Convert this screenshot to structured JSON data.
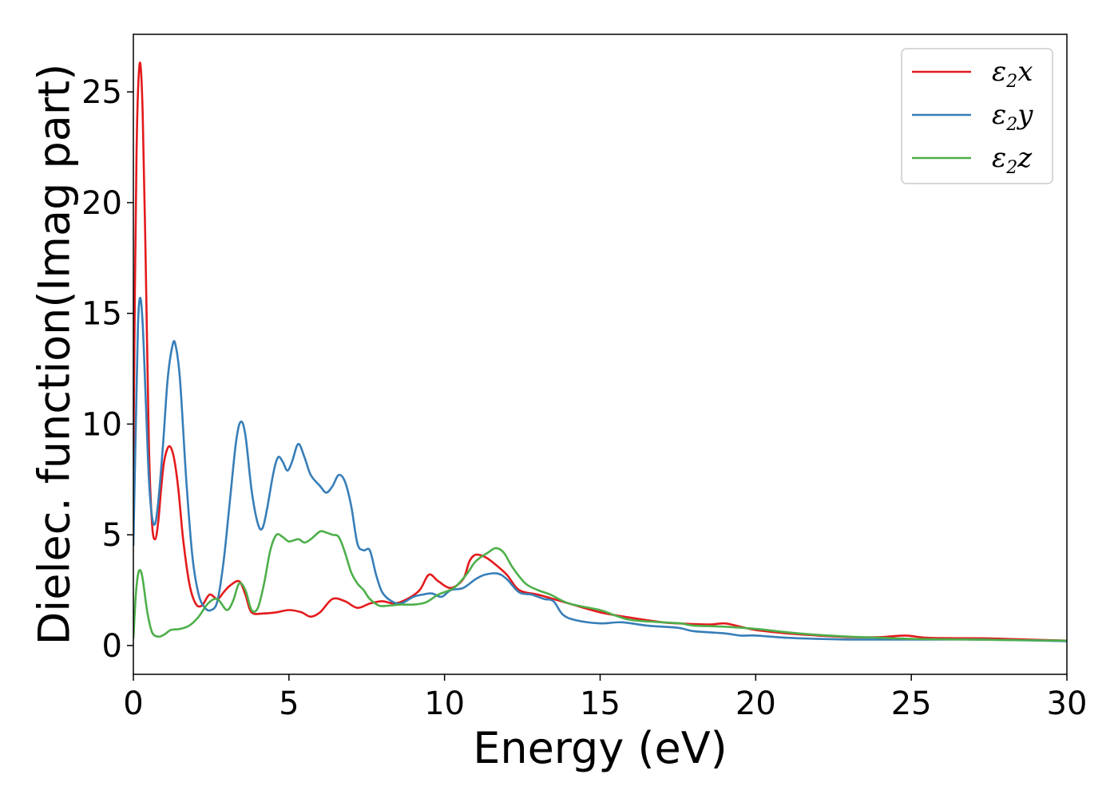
{
  "chart_data": {
    "type": "line",
    "title": "",
    "xlabel": "Energy (eV)",
    "ylabel": "Dielec. function(Imag part)",
    "xlim": [
      0,
      30
    ],
    "ylim": [
      -1.3,
      27.6
    ],
    "xticks": [
      0,
      5,
      10,
      15,
      20,
      25,
      30
    ],
    "yticks": [
      0,
      5,
      10,
      15,
      20,
      25
    ],
    "grid": false,
    "legend_position": "top-right",
    "series": [
      {
        "name": "ε₂x",
        "legend_base": "ε",
        "legend_sub": "2",
        "legend_suffix": "x",
        "color": "#e41a1c",
        "points": [
          [
            0,
            8
          ],
          [
            0.05,
            16
          ],
          [
            0.1,
            22
          ],
          [
            0.15,
            25
          ],
          [
            0.22,
            26.3
          ],
          [
            0.3,
            24
          ],
          [
            0.4,
            17
          ],
          [
            0.5,
            9
          ],
          [
            0.6,
            5.5
          ],
          [
            0.7,
            4.8
          ],
          [
            0.8,
            5.6
          ],
          [
            0.9,
            7.2
          ],
          [
            1.0,
            8.4
          ],
          [
            1.15,
            9.0
          ],
          [
            1.3,
            8.5
          ],
          [
            1.45,
            7.0
          ],
          [
            1.6,
            4.8
          ],
          [
            1.8,
            2.8
          ],
          [
            2.0,
            1.9
          ],
          [
            2.2,
            1.8
          ],
          [
            2.45,
            2.3
          ],
          [
            2.7,
            2.1
          ],
          [
            2.9,
            2.4
          ],
          [
            3.1,
            2.7
          ],
          [
            3.4,
            2.9
          ],
          [
            3.6,
            2.3
          ],
          [
            3.8,
            1.5
          ],
          [
            4.2,
            1.45
          ],
          [
            4.6,
            1.5
          ],
          [
            5.0,
            1.6
          ],
          [
            5.4,
            1.5
          ],
          [
            5.7,
            1.3
          ],
          [
            6.0,
            1.5
          ],
          [
            6.4,
            2.1
          ],
          [
            6.8,
            2.0
          ],
          [
            7.2,
            1.7
          ],
          [
            7.6,
            1.9
          ],
          [
            8.0,
            2.0
          ],
          [
            8.4,
            1.9
          ],
          [
            8.8,
            2.1
          ],
          [
            9.2,
            2.5
          ],
          [
            9.5,
            3.2
          ],
          [
            9.8,
            2.9
          ],
          [
            10.2,
            2.6
          ],
          [
            10.6,
            3.0
          ],
          [
            10.8,
            3.8
          ],
          [
            11.0,
            4.1
          ],
          [
            11.3,
            4.0
          ],
          [
            11.6,
            3.7
          ],
          [
            12.0,
            3.2
          ],
          [
            12.4,
            2.5
          ],
          [
            13.0,
            2.3
          ],
          [
            13.5,
            2.1
          ],
          [
            14.0,
            1.9
          ],
          [
            15.0,
            1.5
          ],
          [
            16.0,
            1.25
          ],
          [
            17.0,
            1.05
          ],
          [
            17.5,
            1.0
          ],
          [
            18.5,
            0.95
          ],
          [
            19.0,
            1.0
          ],
          [
            19.5,
            0.85
          ],
          [
            20.0,
            0.7
          ],
          [
            21.0,
            0.55
          ],
          [
            22.0,
            0.45
          ],
          [
            23.0,
            0.38
          ],
          [
            24.0,
            0.38
          ],
          [
            24.8,
            0.45
          ],
          [
            25.5,
            0.35
          ],
          [
            26.5,
            0.33
          ],
          [
            27.5,
            0.32
          ],
          [
            28.5,
            0.28
          ],
          [
            30.0,
            0.22
          ]
        ]
      },
      {
        "name": "ε₂y",
        "legend_base": "ε",
        "legend_sub": "2",
        "legend_suffix": "y",
        "color": "#377eb8",
        "points": [
          [
            0,
            4.5
          ],
          [
            0.08,
            10
          ],
          [
            0.15,
            14.5
          ],
          [
            0.22,
            15.7
          ],
          [
            0.3,
            14.5
          ],
          [
            0.4,
            11
          ],
          [
            0.5,
            7.5
          ],
          [
            0.6,
            5.8
          ],
          [
            0.7,
            5.5
          ],
          [
            0.8,
            6.5
          ],
          [
            0.95,
            9.0
          ],
          [
            1.1,
            12.0
          ],
          [
            1.25,
            13.5
          ],
          [
            1.35,
            13.6
          ],
          [
            1.5,
            12.0
          ],
          [
            1.7,
            7.5
          ],
          [
            1.9,
            4.0
          ],
          [
            2.1,
            2.3
          ],
          [
            2.3,
            1.7
          ],
          [
            2.5,
            1.6
          ],
          [
            2.7,
            2.0
          ],
          [
            2.9,
            3.8
          ],
          [
            3.1,
            6.5
          ],
          [
            3.3,
            9.2
          ],
          [
            3.45,
            10.1
          ],
          [
            3.6,
            9.5
          ],
          [
            3.8,
            7.0
          ],
          [
            4.0,
            5.5
          ],
          [
            4.15,
            5.3
          ],
          [
            4.3,
            6.2
          ],
          [
            4.5,
            7.8
          ],
          [
            4.65,
            8.5
          ],
          [
            4.8,
            8.3
          ],
          [
            4.95,
            7.9
          ],
          [
            5.1,
            8.3
          ],
          [
            5.3,
            9.1
          ],
          [
            5.5,
            8.5
          ],
          [
            5.7,
            7.7
          ],
          [
            6.0,
            7.2
          ],
          [
            6.2,
            6.9
          ],
          [
            6.4,
            7.2
          ],
          [
            6.6,
            7.7
          ],
          [
            6.8,
            7.4
          ],
          [
            7.0,
            6.3
          ],
          [
            7.2,
            4.6
          ],
          [
            7.4,
            4.3
          ],
          [
            7.6,
            4.3
          ],
          [
            7.8,
            3.2
          ],
          [
            8.0,
            2.4
          ],
          [
            8.3,
            2.0
          ],
          [
            8.6,
            1.9
          ],
          [
            9.0,
            2.2
          ],
          [
            9.3,
            2.3
          ],
          [
            9.6,
            2.35
          ],
          [
            9.9,
            2.2
          ],
          [
            10.2,
            2.5
          ],
          [
            10.6,
            2.6
          ],
          [
            11.0,
            3.0
          ],
          [
            11.3,
            3.2
          ],
          [
            11.7,
            3.25
          ],
          [
            12.0,
            3.0
          ],
          [
            12.4,
            2.4
          ],
          [
            12.8,
            2.3
          ],
          [
            13.2,
            2.1
          ],
          [
            13.5,
            2.0
          ],
          [
            13.8,
            1.4
          ],
          [
            14.2,
            1.15
          ],
          [
            15.0,
            1.0
          ],
          [
            15.7,
            1.05
          ],
          [
            16.5,
            0.9
          ],
          [
            17.5,
            0.8
          ],
          [
            18.0,
            0.65
          ],
          [
            19.0,
            0.55
          ],
          [
            19.5,
            0.45
          ],
          [
            20.0,
            0.45
          ],
          [
            21.0,
            0.35
          ],
          [
            22.0,
            0.3
          ],
          [
            23.0,
            0.27
          ],
          [
            24.0,
            0.27
          ],
          [
            25.0,
            0.27
          ],
          [
            26.0,
            0.27
          ],
          [
            27.0,
            0.27
          ],
          [
            28.0,
            0.25
          ],
          [
            30.0,
            0.2
          ]
        ]
      },
      {
        "name": "ε₂z",
        "legend_base": "ε",
        "legend_sub": "2",
        "legend_suffix": "z",
        "color": "#4daf4a",
        "points": [
          [
            0,
            0.3
          ],
          [
            0.08,
            2.3
          ],
          [
            0.15,
            3.2
          ],
          [
            0.22,
            3.4
          ],
          [
            0.3,
            3.0
          ],
          [
            0.45,
            1.5
          ],
          [
            0.6,
            0.6
          ],
          [
            0.8,
            0.4
          ],
          [
            1.0,
            0.5
          ],
          [
            1.2,
            0.7
          ],
          [
            1.5,
            0.75
          ],
          [
            1.8,
            0.9
          ],
          [
            2.1,
            1.3
          ],
          [
            2.4,
            1.9
          ],
          [
            2.7,
            2.1
          ],
          [
            3.0,
            1.6
          ],
          [
            3.2,
            2.0
          ],
          [
            3.4,
            2.8
          ],
          [
            3.6,
            2.5
          ],
          [
            3.8,
            1.6
          ],
          [
            4.0,
            1.7
          ],
          [
            4.2,
            2.8
          ],
          [
            4.4,
            4.3
          ],
          [
            4.6,
            5.0
          ],
          [
            4.8,
            4.9
          ],
          [
            5.0,
            4.7
          ],
          [
            5.3,
            4.8
          ],
          [
            5.5,
            4.65
          ],
          [
            5.7,
            4.8
          ],
          [
            6.0,
            5.15
          ],
          [
            6.2,
            5.1
          ],
          [
            6.4,
            5.0
          ],
          [
            6.6,
            4.9
          ],
          [
            6.8,
            4.2
          ],
          [
            7.0,
            3.3
          ],
          [
            7.2,
            2.8
          ],
          [
            7.4,
            2.5
          ],
          [
            7.6,
            2.1
          ],
          [
            7.9,
            1.8
          ],
          [
            8.2,
            1.8
          ],
          [
            8.6,
            1.85
          ],
          [
            9.0,
            1.85
          ],
          [
            9.4,
            1.95
          ],
          [
            9.8,
            2.3
          ],
          [
            10.3,
            2.6
          ],
          [
            10.7,
            3.2
          ],
          [
            11.0,
            3.8
          ],
          [
            11.4,
            4.2
          ],
          [
            11.65,
            4.4
          ],
          [
            11.9,
            4.2
          ],
          [
            12.2,
            3.5
          ],
          [
            12.6,
            2.8
          ],
          [
            13.0,
            2.5
          ],
          [
            13.4,
            2.3
          ],
          [
            14.0,
            1.9
          ],
          [
            15.0,
            1.6
          ],
          [
            15.5,
            1.35
          ],
          [
            16.0,
            1.15
          ],
          [
            17.0,
            1.05
          ],
          [
            17.6,
            1.0
          ],
          [
            18.0,
            0.9
          ],
          [
            19.0,
            0.85
          ],
          [
            20.0,
            0.75
          ],
          [
            21.0,
            0.6
          ],
          [
            22.0,
            0.48
          ],
          [
            23.0,
            0.4
          ],
          [
            24.0,
            0.35
          ],
          [
            25.0,
            0.3
          ],
          [
            26.0,
            0.28
          ],
          [
            27.0,
            0.27
          ],
          [
            28.0,
            0.25
          ],
          [
            30.0,
            0.22
          ]
        ]
      }
    ]
  }
}
